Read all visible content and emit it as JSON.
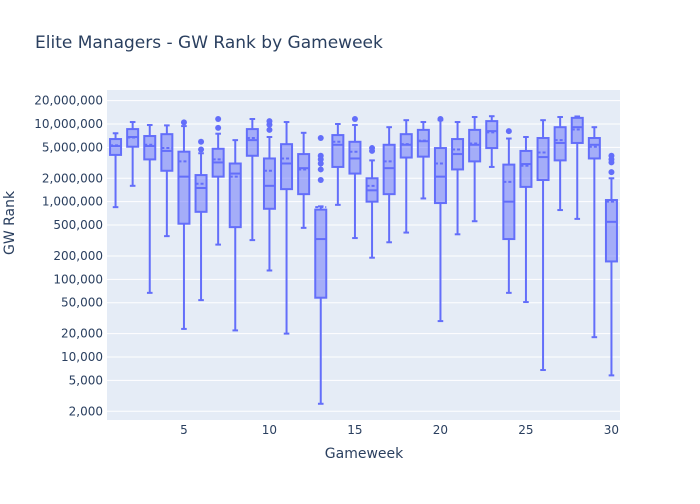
{
  "chart_data": {
    "type": "box",
    "title": "Elite Managers - GW Rank by Gameweek",
    "xlabel": "Gameweek",
    "ylabel": "GW Rank",
    "yscale": "log",
    "ylim": [
      1700,
      20000000
    ],
    "xlim": [
      0.5,
      30.5
    ],
    "xticks": [
      5,
      10,
      15,
      20,
      25,
      30
    ],
    "yticks": [
      {
        "value": 2000,
        "label": "2,000"
      },
      {
        "value": 5000,
        "label": "5,000"
      },
      {
        "value": 10000,
        "label": "10,000"
      },
      {
        "value": 20000,
        "label": "20,000"
      },
      {
        "value": 50000,
        "label": "50,000"
      },
      {
        "value": 100000,
        "label": "100,000"
      },
      {
        "value": 200000,
        "label": "200,000"
      },
      {
        "value": 500000,
        "label": "500,000"
      },
      {
        "value": 1000000,
        "label": "1,000,000"
      },
      {
        "value": 2000000,
        "label": "2,000,000"
      },
      {
        "value": 5000000,
        "label": "5,000,000"
      },
      {
        "value": 10000000,
        "label": "10,000,000"
      },
      {
        "value": 20000000,
        "label": "20,000,000"
      }
    ],
    "grid": true,
    "legend": false,
    "colors": {
      "box": "#636efa",
      "plot_bg": "#e5ecf6",
      "grid": "#ffffff",
      "text": "#2a3f5f"
    },
    "boxes": [
      {
        "gw": 1,
        "low": 850000,
        "q1": 4000000,
        "median": 5200000,
        "mean": 5300000,
        "q3": 6400000,
        "high": 7600000,
        "outliers": []
      },
      {
        "gw": 2,
        "low": 1600000,
        "q1": 5100000,
        "median": 6800000,
        "mean": 6700000,
        "q3": 8600000,
        "high": 10600000,
        "outliers": []
      },
      {
        "gw": 3,
        "low": 67000,
        "q1": 3500000,
        "median": 5200000,
        "mean": 5400000,
        "q3": 7000000,
        "high": 9700000,
        "outliers": []
      },
      {
        "gw": 4,
        "low": 360000,
        "q1": 2500000,
        "median": 4500000,
        "mean": 4900000,
        "q3": 7400000,
        "high": 9600000,
        "outliers": []
      },
      {
        "gw": 5,
        "low": 23000,
        "q1": 520000,
        "median": 2100000,
        "mean": 3300000,
        "q3": 4400000,
        "high": 9400000,
        "outliers": [
          10500000
        ]
      },
      {
        "gw": 6,
        "low": 54000,
        "q1": 740000,
        "median": 1500000,
        "mean": 1700000,
        "q3": 2200000,
        "high": 4200000,
        "outliers": [
          4700000,
          5900000
        ]
      },
      {
        "gw": 7,
        "low": 280000,
        "q1": 2100000,
        "median": 3200000,
        "mean": 3500000,
        "q3": 4800000,
        "high": 7500000,
        "outliers": [
          8900000,
          11600000
        ]
      },
      {
        "gw": 8,
        "low": 22000,
        "q1": 470000,
        "median": 2300000,
        "mean": 2100000,
        "q3": 3100000,
        "high": 6200000,
        "outliers": []
      },
      {
        "gw": 9,
        "low": 320000,
        "q1": 3900000,
        "median": 6200000,
        "mean": 6600000,
        "q3": 8600000,
        "high": 11600000,
        "outliers": []
      },
      {
        "gw": 10,
        "low": 130000,
        "q1": 810000,
        "median": 1600000,
        "mean": 2500000,
        "q3": 3600000,
        "high": 6800000,
        "outliers": [
          8400000,
          9800000,
          10900000
        ]
      },
      {
        "gw": 11,
        "low": 20000,
        "q1": 1450000,
        "median": 3100000,
        "mean": 3600000,
        "q3": 5500000,
        "high": 10600000,
        "outliers": []
      },
      {
        "gw": 12,
        "low": 460000,
        "q1": 1250000,
        "median": 2700000,
        "mean": 2600000,
        "q3": 4100000,
        "high": 7700000,
        "outliers": []
      },
      {
        "gw": 13,
        "low": 2500,
        "q1": 58000,
        "median": 330000,
        "mean": 850000,
        "q3": 790000,
        "high": 870000,
        "outliers": [
          1900000,
          2600000,
          3100000,
          3500000,
          3900000,
          6600000
        ]
      },
      {
        "gw": 14,
        "low": 910000,
        "q1": 2800000,
        "median": 5400000,
        "mean": 5900000,
        "q3": 7200000,
        "high": 10000000,
        "outliers": []
      },
      {
        "gw": 15,
        "low": 340000,
        "q1": 2300000,
        "median": 3600000,
        "mean": 4400000,
        "q3": 5900000,
        "high": 9700000,
        "outliers": [
          11600000
        ]
      },
      {
        "gw": 16,
        "low": 190000,
        "q1": 1000000,
        "median": 1400000,
        "mean": 1600000,
        "q3": 2000000,
        "high": 3400000,
        "outliers": [
          4500000,
          4900000
        ]
      },
      {
        "gw": 17,
        "low": 300000,
        "q1": 1250000,
        "median": 2700000,
        "mean": 3300000,
        "q3": 5400000,
        "high": 9100000,
        "outliers": []
      },
      {
        "gw": 18,
        "low": 400000,
        "q1": 3700000,
        "median": 5400000,
        "mean": 5500000,
        "q3": 7400000,
        "high": 11200000,
        "outliers": []
      },
      {
        "gw": 19,
        "low": 1100000,
        "q1": 3800000,
        "median": 6000000,
        "mean": 6100000,
        "q3": 8400000,
        "high": 10600000,
        "outliers": []
      },
      {
        "gw": 20,
        "low": 29000,
        "q1": 960000,
        "median": 2100000,
        "mean": 3100000,
        "q3": 4900000,
        "high": 11200000,
        "outliers": [
          11600000
        ]
      },
      {
        "gw": 21,
        "low": 380000,
        "q1": 2600000,
        "median": 4100000,
        "mean": 4700000,
        "q3": 6400000,
        "high": 10600000,
        "outliers": []
      },
      {
        "gw": 22,
        "low": 560000,
        "q1": 3300000,
        "median": 5400000,
        "mean": 5600000,
        "q3": 8400000,
        "high": 12300000,
        "outliers": []
      },
      {
        "gw": 23,
        "low": 2800000,
        "q1": 4900000,
        "median": 8100000,
        "mean": 7800000,
        "q3": 10900000,
        "high": 12600000,
        "outliers": []
      },
      {
        "gw": 24,
        "low": 67000,
        "q1": 330000,
        "median": 1000000,
        "mean": 1800000,
        "q3": 3000000,
        "high": 6500000,
        "outliers": [
          8100000
        ]
      },
      {
        "gw": 25,
        "low": 51000,
        "q1": 1550000,
        "median": 3050000,
        "mean": 2900000,
        "q3": 4500000,
        "high": 6800000,
        "outliers": []
      },
      {
        "gw": 26,
        "low": 6800,
        "q1": 1900000,
        "median": 3750000,
        "mean": 4300000,
        "q3": 6600000,
        "high": 11200000,
        "outliers": []
      },
      {
        "gw": 27,
        "low": 780000,
        "q1": 3400000,
        "median": 5700000,
        "mean": 6200000,
        "q3": 9100000,
        "high": 12300000,
        "outliers": []
      },
      {
        "gw": 28,
        "low": 600000,
        "q1": 5700000,
        "median": 9100000,
        "mean": 8500000,
        "q3": 12000000,
        "high": 12500000,
        "outliers": []
      },
      {
        "gw": 29,
        "low": 18000,
        "q1": 3600000,
        "median": 5400000,
        "mean": 5100000,
        "q3": 6600000,
        "high": 9100000,
        "outliers": []
      },
      {
        "gw": 30,
        "low": 5800,
        "q1": 170000,
        "median": 550000,
        "mean": 1000000,
        "q3": 1050000,
        "high": 2000000,
        "outliers": [
          2400000,
          3200000,
          3500000,
          3900000
        ]
      }
    ]
  }
}
